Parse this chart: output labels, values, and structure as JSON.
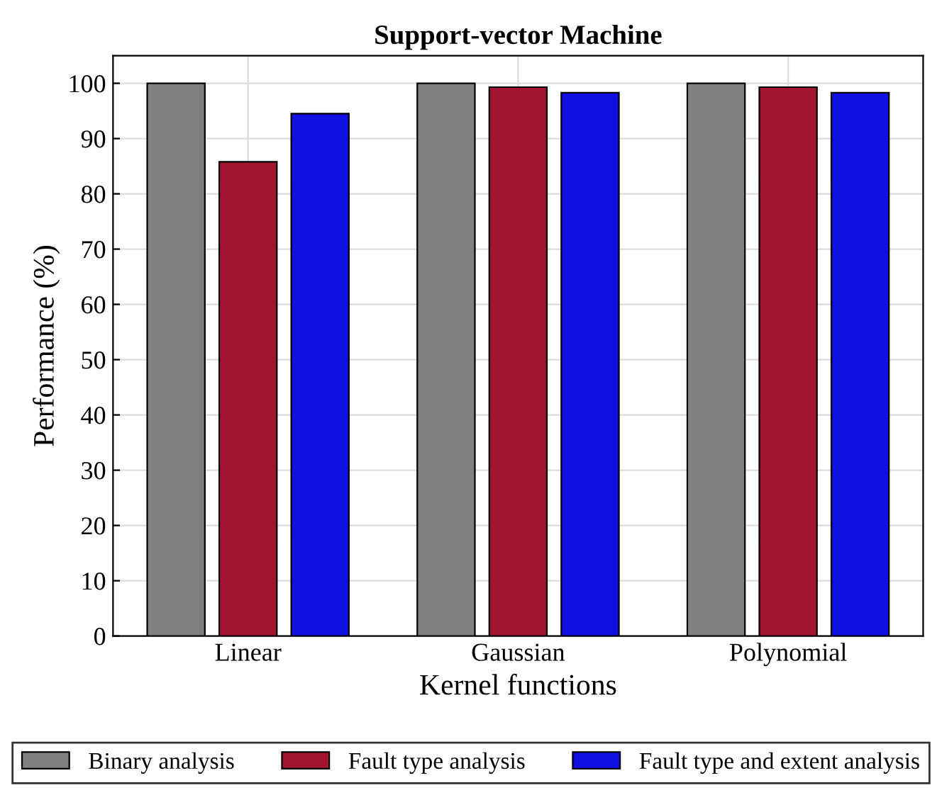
{
  "chart_data": {
    "type": "bar",
    "title": "Support-vector Machine",
    "xlabel": "Kernel functions",
    "ylabel": "Performance (%)",
    "categories": [
      "Linear",
      "Gaussian",
      "Polynomial"
    ],
    "series": [
      {
        "name": "Binary analysis",
        "color": "#808080",
        "values": [
          100,
          100,
          100
        ]
      },
      {
        "name": "Fault type analysis",
        "color": "#a11530",
        "values": [
          85.8,
          99.3,
          99.3
        ]
      },
      {
        "name": "Fault type and extent analysis",
        "color": "#1010e0",
        "values": [
          94.5,
          98.3,
          98.3
        ]
      }
    ],
    "ylim": [
      0,
      105
    ],
    "yticks": [
      0,
      10,
      20,
      30,
      40,
      50,
      60,
      70,
      80,
      90,
      100
    ],
    "grid": true,
    "legend": "bottom"
  }
}
